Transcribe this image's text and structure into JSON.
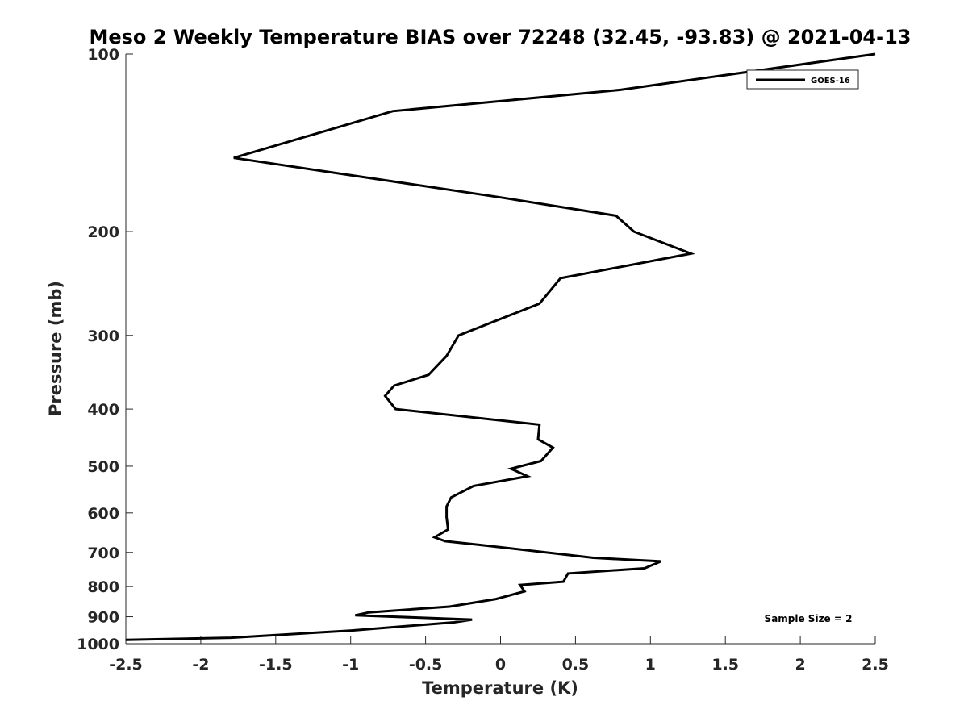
{
  "chart_data": {
    "type": "line",
    "title": "Meso 2 Weekly Temperature BIAS over 72248 (32.45, -93.83) @ 2021-04-13",
    "xlabel": "Temperature (K)",
    "ylabel": "Pressure (mb)",
    "xlim": [
      -2.5,
      2.5
    ],
    "ylim": [
      100,
      1000
    ],
    "y_scale": "log",
    "y_reversed": true,
    "grid": false,
    "legend_position": "top-right",
    "x_ticks": [
      -2.5,
      -2,
      -1.5,
      -1,
      -0.5,
      0,
      0.5,
      1,
      1.5,
      2,
      2.5
    ],
    "x_tick_labels": [
      "-2.5",
      "-2",
      "-1.5",
      "-1",
      "-0.5",
      "0",
      "0.5",
      "1",
      "1.5",
      "2",
      "2.5"
    ],
    "y_ticks": [
      100,
      200,
      300,
      400,
      500,
      600,
      700,
      800,
      900,
      1000
    ],
    "y_tick_labels": [
      "100",
      "200",
      "300",
      "400",
      "500",
      "600",
      "700",
      "800",
      "900",
      "1000"
    ],
    "annotation": "Sample Size = 2",
    "series": [
      {
        "name": "GOES-16",
        "color": "#000000",
        "x": [
          2.5,
          0.8,
          -0.72,
          -1.78,
          0,
          0.77,
          0.89,
          1.27,
          0.4,
          0.26,
          -0.28,
          -0.36,
          -0.48,
          -0.71,
          -0.77,
          -0.7,
          0.26,
          0.25,
          0.35,
          0.27,
          0.07,
          0.18,
          -0.18,
          -0.33,
          -0.36,
          -0.36,
          -0.35,
          -0.44,
          -0.37,
          -0.13,
          0.62,
          1.07,
          0.96,
          0.45,
          0.42,
          0.13,
          0.16,
          -0.03,
          -0.34,
          -0.88,
          -0.97,
          -0.19,
          -0.31,
          -1.0,
          -1.8,
          -2.5
        ],
        "y": [
          100,
          115,
          125,
          150,
          175,
          188,
          200,
          218,
          240,
          265,
          300,
          325,
          350,
          365,
          380,
          400,
          425,
          450,
          465,
          490,
          505,
          520,
          540,
          565,
          585,
          610,
          640,
          660,
          670,
          680,
          715,
          725,
          745,
          760,
          785,
          795,
          815,
          840,
          865,
          885,
          895,
          910,
          920,
          950,
          977,
          985
        ]
      }
    ]
  }
}
